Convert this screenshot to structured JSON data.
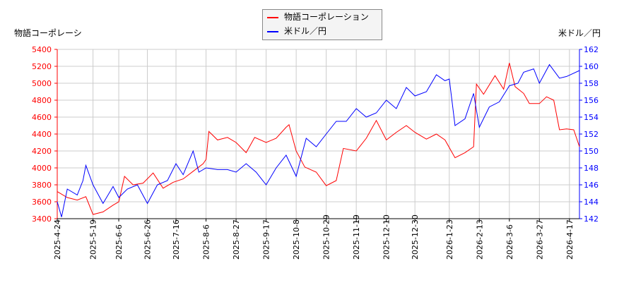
{
  "chart_data": {
    "type": "line",
    "title": "",
    "legend_position": "top-center",
    "grid": true,
    "left_axis": {
      "label": "物語コーポレーシ",
      "ylim": [
        3400,
        5400
      ],
      "ticks": [
        3400,
        3600,
        3800,
        4000,
        4200,
        4400,
        4600,
        4800,
        5000,
        5200,
        5400
      ],
      "color": "#ff0000"
    },
    "right_axis": {
      "label": "米ドル／円",
      "ylim": [
        142,
        162
      ],
      "ticks": [
        142,
        144,
        146,
        148,
        150,
        152,
        154,
        156,
        158,
        160,
        162
      ],
      "color": "#0000ff"
    },
    "xlim": [
      "2025-04-24",
      "2026-04-24"
    ],
    "x_ticks": [
      "2025-4-24",
      "2025-5-19",
      "2025-6-6",
      "2025-6-26",
      "2025-7-16",
      "2025-8-6",
      "2025-8-27",
      "2025-9-17",
      "2025-10-8",
      "2025-10-29",
      "2025-11-19",
      "2025-12-10",
      "2025-12-30",
      "2026-1-23",
      "2026-2-13",
      "2026-3-6",
      "2026-3-27",
      "2026-4-17"
    ],
    "series": [
      {
        "name": "物語コーポレーション",
        "axis": "left",
        "color": "#ff0000",
        "points": [
          [
            "2025-04-24",
            3720
          ],
          [
            "2025-05-01",
            3650
          ],
          [
            "2025-05-08",
            3620
          ],
          [
            "2025-05-14",
            3660
          ],
          [
            "2025-05-19",
            3450
          ],
          [
            "2025-05-26",
            3480
          ],
          [
            "2025-06-02",
            3560
          ],
          [
            "2025-06-06",
            3600
          ],
          [
            "2025-06-10",
            3900
          ],
          [
            "2025-06-16",
            3800
          ],
          [
            "2025-06-23",
            3820
          ],
          [
            "2025-06-30",
            3940
          ],
          [
            "2025-07-07",
            3760
          ],
          [
            "2025-07-14",
            3830
          ],
          [
            "2025-07-21",
            3870
          ],
          [
            "2025-07-28",
            3960
          ],
          [
            "2025-08-04",
            4050
          ],
          [
            "2025-08-06",
            4100
          ],
          [
            "2025-08-08",
            4430
          ],
          [
            "2025-08-14",
            4330
          ],
          [
            "2025-08-21",
            4360
          ],
          [
            "2025-08-27",
            4300
          ],
          [
            "2025-09-03",
            4180
          ],
          [
            "2025-09-09",
            4360
          ],
          [
            "2025-09-17",
            4300
          ],
          [
            "2025-09-24",
            4350
          ],
          [
            "2025-10-01",
            4480
          ],
          [
            "2025-10-03",
            4510
          ],
          [
            "2025-10-08",
            4200
          ],
          [
            "2025-10-14",
            4010
          ],
          [
            "2025-10-22",
            3950
          ],
          [
            "2025-10-29",
            3790
          ],
          [
            "2025-11-05",
            3850
          ],
          [
            "2025-11-10",
            4230
          ],
          [
            "2025-11-19",
            4200
          ],
          [
            "2025-11-26",
            4350
          ],
          [
            "2025-12-03",
            4560
          ],
          [
            "2025-12-10",
            4330
          ],
          [
            "2025-12-17",
            4420
          ],
          [
            "2025-12-24",
            4500
          ],
          [
            "2025-12-30",
            4420
          ],
          [
            "2026-01-07",
            4340
          ],
          [
            "2026-01-14",
            4400
          ],
          [
            "2026-01-20",
            4330
          ],
          [
            "2026-01-27",
            4120
          ],
          [
            "2026-02-03",
            4180
          ],
          [
            "2026-02-09",
            4250
          ],
          [
            "2026-02-11",
            4990
          ],
          [
            "2026-02-16",
            4870
          ],
          [
            "2026-02-24",
            5090
          ],
          [
            "2026-03-02",
            4930
          ],
          [
            "2026-03-06",
            5240
          ],
          [
            "2026-03-10",
            4960
          ],
          [
            "2026-03-16",
            4880
          ],
          [
            "2026-03-20",
            4760
          ],
          [
            "2026-03-27",
            4760
          ],
          [
            "2026-04-01",
            4840
          ],
          [
            "2026-04-06",
            4800
          ],
          [
            "2026-04-10",
            4450
          ],
          [
            "2026-04-15",
            4460
          ],
          [
            "2026-04-20",
            4450
          ],
          [
            "2026-04-24",
            4250
          ]
        ]
      },
      {
        "name": "米ドル／円",
        "axis": "right",
        "color": "#0000ff",
        "points": [
          [
            "2025-04-24",
            144
          ],
          [
            "2025-04-27",
            142.2
          ],
          [
            "2025-05-01",
            145.5
          ],
          [
            "2025-05-08",
            144.8
          ],
          [
            "2025-05-12",
            146.5
          ],
          [
            "2025-05-14",
            148.3
          ],
          [
            "2025-05-19",
            146.0
          ],
          [
            "2025-05-26",
            143.8
          ],
          [
            "2025-06-02",
            145.8
          ],
          [
            "2025-06-06",
            144.5
          ],
          [
            "2025-06-12",
            145.5
          ],
          [
            "2025-06-19",
            146.0
          ],
          [
            "2025-06-26",
            143.8
          ],
          [
            "2025-07-03",
            146
          ],
          [
            "2025-07-10",
            146.5
          ],
          [
            "2025-07-16",
            148.5
          ],
          [
            "2025-07-21",
            147.2
          ],
          [
            "2025-07-28",
            150
          ],
          [
            "2025-08-01",
            147.5
          ],
          [
            "2025-08-06",
            148
          ],
          [
            "2025-08-14",
            147.8
          ],
          [
            "2025-08-21",
            147.8
          ],
          [
            "2025-08-27",
            147.5
          ],
          [
            "2025-09-03",
            148.5
          ],
          [
            "2025-09-10",
            147.5
          ],
          [
            "2025-09-17",
            146.0
          ],
          [
            "2025-09-24",
            148
          ],
          [
            "2025-10-01",
            149.5
          ],
          [
            "2025-10-08",
            147
          ],
          [
            "2025-10-15",
            151.5
          ],
          [
            "2025-10-22",
            150.5
          ],
          [
            "2025-10-29",
            152
          ],
          [
            "2025-11-05",
            153.5
          ],
          [
            "2025-11-12",
            153.5
          ],
          [
            "2025-11-19",
            155
          ],
          [
            "2025-11-26",
            154
          ],
          [
            "2025-12-03",
            154.5
          ],
          [
            "2025-12-10",
            156
          ],
          [
            "2025-12-17",
            155
          ],
          [
            "2025-12-24",
            157.5
          ],
          [
            "2025-12-30",
            156.5
          ],
          [
            "2026-01-07",
            157
          ],
          [
            "2026-01-14",
            159
          ],
          [
            "2026-01-20",
            158.3
          ],
          [
            "2026-01-23",
            158.5
          ],
          [
            "2026-01-27",
            153
          ],
          [
            "2026-02-03",
            153.8
          ],
          [
            "2026-02-09",
            156.8
          ],
          [
            "2026-02-13",
            152.8
          ],
          [
            "2026-02-20",
            155.2
          ],
          [
            "2026-02-27",
            155.8
          ],
          [
            "2026-03-06",
            157.7
          ],
          [
            "2026-03-12",
            158
          ],
          [
            "2026-03-16",
            159.3
          ],
          [
            "2026-03-23",
            159.7
          ],
          [
            "2026-03-27",
            158
          ],
          [
            "2026-04-03",
            160.2
          ],
          [
            "2026-04-10",
            158.6
          ],
          [
            "2026-04-15",
            158.8
          ],
          [
            "2026-04-24",
            159.5
          ]
        ]
      }
    ]
  }
}
